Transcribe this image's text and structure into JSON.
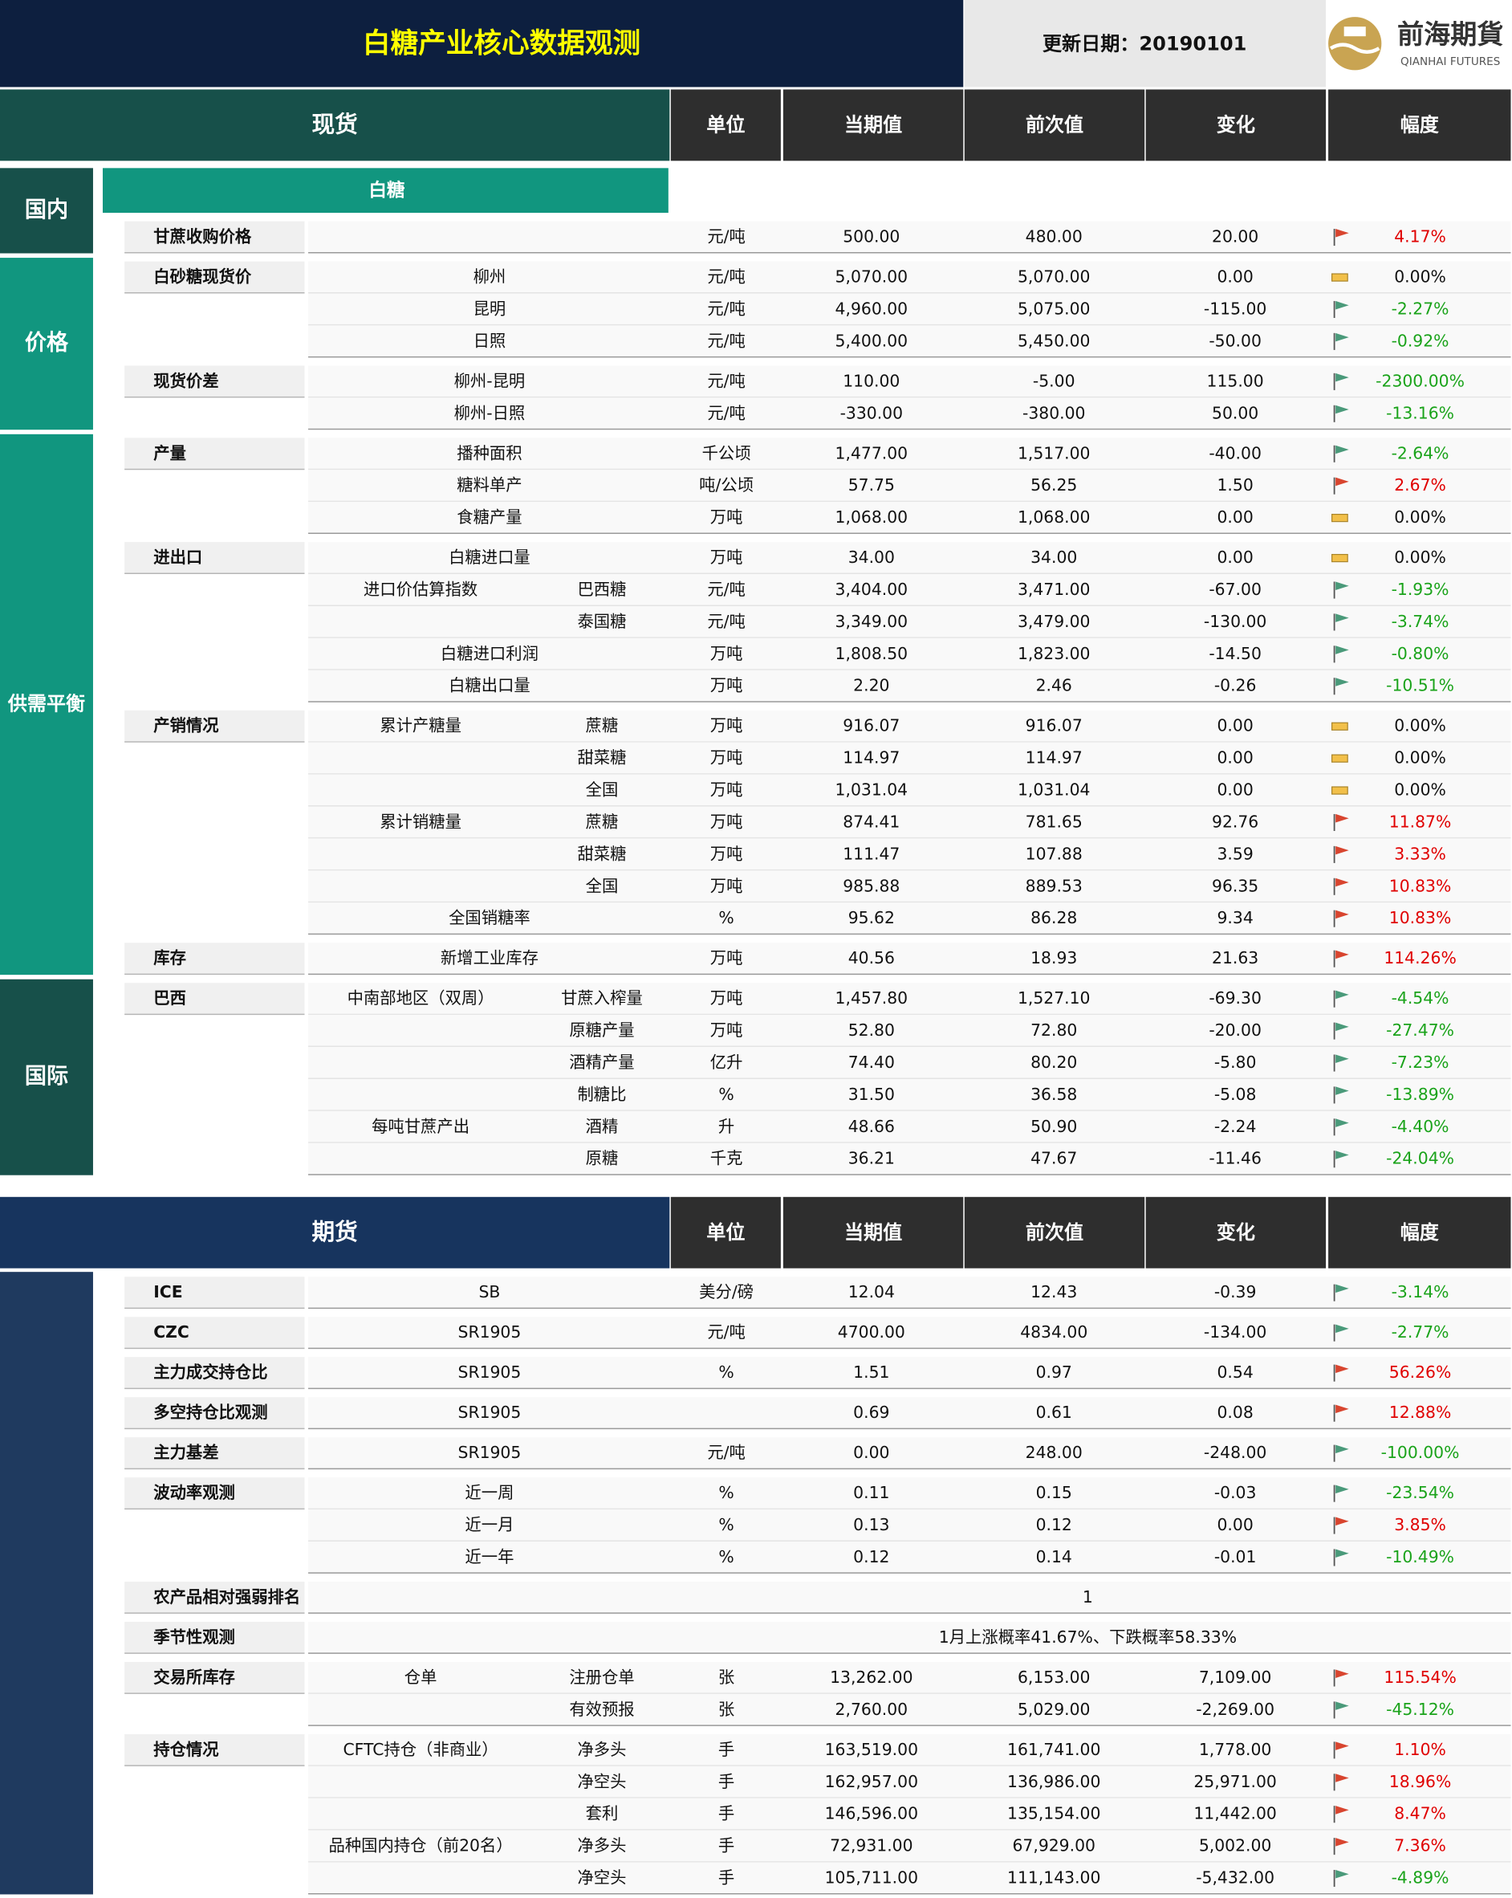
{
  "header": {
    "title": "白糖产业核心数据观测",
    "update": "更新日期：20190101",
    "logo_cn": "前海期貨",
    "logo_en": "QIANHAI FUTURES"
  },
  "columns": [
    "单位",
    "当期值",
    "前次值",
    "变化",
    "幅度"
  ],
  "spot": {
    "title": "现货",
    "subheader": "白糖",
    "color": "#17504a",
    "blocks": [
      {
        "label": "国内",
        "color": "#17504a",
        "groups": [
          {
            "label": "甘蔗收购价格",
            "rows": [
              {
                "unit": "元/吨",
                "cur": "500.00",
                "prev": "480.00",
                "chg": "20.00",
                "pct": "4.17%"
              }
            ]
          }
        ]
      },
      {
        "label": "价格",
        "color": "#11967f",
        "groups": [
          {
            "label": "白砂糖现货价",
            "rows": [
              {
                "name": "柳州",
                "unit": "元/吨",
                "cur": "5,070.00",
                "prev": "5,070.00",
                "chg": "0.00",
                "pct": "0.00%"
              },
              {
                "name": "昆明",
                "unit": "元/吨",
                "cur": "4,960.00",
                "prev": "5,075.00",
                "chg": "-115.00",
                "pct": "-2.27%"
              },
              {
                "name": "日照",
                "unit": "元/吨",
                "cur": "5,400.00",
                "prev": "5,450.00",
                "chg": "-50.00",
                "pct": "-0.92%"
              }
            ]
          },
          {
            "label": "现货价差",
            "rows": [
              {
                "name": "柳州-昆明",
                "unit": "元/吨",
                "cur": "110.00",
                "prev": "-5.00",
                "chg": "115.00",
                "pct": "-2300.00%"
              },
              {
                "name": "柳州-日照",
                "unit": "元/吨",
                "cur": "-330.00",
                "prev": "-380.00",
                "chg": "50.00",
                "pct": "-13.16%"
              }
            ]
          }
        ]
      },
      {
        "label": "供需平衡",
        "color": "#11967f",
        "groups": [
          {
            "label": "产量",
            "rows": [
              {
                "name": "播种面积",
                "unit": "千公顷",
                "cur": "1,477.00",
                "prev": "1,517.00",
                "chg": "-40.00",
                "pct": "-2.64%"
              },
              {
                "name": "糖料单产",
                "unit": "吨/公顷",
                "cur": "57.75",
                "prev": "56.25",
                "chg": "1.50",
                "pct": "2.67%"
              },
              {
                "name": "食糖产量",
                "unit": "万吨",
                "cur": "1,068.00",
                "prev": "1,068.00",
                "chg": "0.00",
                "pct": "0.00%"
              }
            ]
          },
          {
            "label": "进出口",
            "rows": [
              {
                "name": "白糖进口量",
                "unit": "万吨",
                "cur": "34.00",
                "prev": "34.00",
                "chg": "0.00",
                "pct": "0.00%"
              },
              {
                "name": "进口价估算指数",
                "sub": "巴西糖",
                "unit": "元/吨",
                "cur": "3,404.00",
                "prev": "3,471.00",
                "chg": "-67.00",
                "pct": "-1.93%"
              },
              {
                "sub": "泰国糖",
                "unit": "元/吨",
                "cur": "3,349.00",
                "prev": "3,479.00",
                "chg": "-130.00",
                "pct": "-3.74%"
              },
              {
                "name": "白糖进口利润",
                "unit": "万吨",
                "cur": "1,808.50",
                "prev": "1,823.00",
                "chg": "-14.50",
                "pct": "-0.80%"
              },
              {
                "name": "白糖出口量",
                "unit": "万吨",
                "cur": "2.20",
                "prev": "2.46",
                "chg": "-0.26",
                "pct": "-10.51%"
              }
            ]
          },
          {
            "label": "产销情况",
            "rows": [
              {
                "name": "累计产糖量",
                "sub": "蔗糖",
                "unit": "万吨",
                "cur": "916.07",
                "prev": "916.07",
                "chg": "0.00",
                "pct": "0.00%"
              },
              {
                "sub": "甜菜糖",
                "unit": "万吨",
                "cur": "114.97",
                "prev": "114.97",
                "chg": "0.00",
                "pct": "0.00%"
              },
              {
                "sub": "全国",
                "unit": "万吨",
                "cur": "1,031.04",
                "prev": "1,031.04",
                "chg": "0.00",
                "pct": "0.00%"
              },
              {
                "name": "累计销糖量",
                "sub": "蔗糖",
                "unit": "万吨",
                "cur": "874.41",
                "prev": "781.65",
                "chg": "92.76",
                "pct": "11.87%"
              },
              {
                "sub": "甜菜糖",
                "unit": "万吨",
                "cur": "111.47",
                "prev": "107.88",
                "chg": "3.59",
                "pct": "3.33%"
              },
              {
                "sub": "全国",
                "unit": "万吨",
                "cur": "985.88",
                "prev": "889.53",
                "chg": "96.35",
                "pct": "10.83%"
              },
              {
                "name": "全国销糖率",
                "unit": "%",
                "cur": "95.62",
                "prev": "86.28",
                "chg": "9.34",
                "pct": "10.83%"
              }
            ]
          },
          {
            "label": "库存",
            "rows": [
              {
                "name": "新增工业库存",
                "unit": "万吨",
                "cur": "40.56",
                "prev": "18.93",
                "chg": "21.63",
                "pct": "114.26%"
              }
            ]
          }
        ]
      },
      {
        "label": "国际",
        "color": "#17504a",
        "groups": [
          {
            "label": "巴西",
            "rows": [
              {
                "name": "中南部地区（双周）",
                "sub": "甘蔗入榨量",
                "unit": "万吨",
                "cur": "1,457.80",
                "prev": "1,527.10",
                "chg": "-69.30",
                "pct": "-4.54%"
              },
              {
                "sub": "原糖产量",
                "unit": "万吨",
                "cur": "52.80",
                "prev": "72.80",
                "chg": "-20.00",
                "pct": "-27.47%"
              },
              {
                "sub": "酒精产量",
                "unit": "亿升",
                "cur": "74.40",
                "prev": "80.20",
                "chg": "-5.80",
                "pct": "-7.23%"
              },
              {
                "sub": "制糖比",
                "unit": "%",
                "cur": "31.50",
                "prev": "36.58",
                "chg": "-5.08",
                "pct": "-13.89%"
              },
              {
                "name": "每吨甘蔗产出",
                "sub": "酒精",
                "unit": "升",
                "cur": "48.66",
                "prev": "50.90",
                "chg": "-2.24",
                "pct": "-4.40%"
              },
              {
                "sub": "原糖",
                "unit": "千克",
                "cur": "36.21",
                "prev": "47.67",
                "chg": "-11.46",
                "pct": "-24.04%"
              }
            ]
          }
        ]
      }
    ]
  },
  "futures": {
    "title": "期货",
    "color": "#17345e",
    "blocks": [
      {
        "color": "#1f3a5f",
        "groups": [
          {
            "label": "ICE",
            "rows": [
              {
                "name": "SB",
                "unit": "美分/磅",
                "cur": "12.04",
                "prev": "12.43",
                "chg": "-0.39",
                "pct": "-3.14%"
              }
            ]
          },
          {
            "label": "CZC",
            "rows": [
              {
                "name": "SR1905",
                "unit": "元/吨",
                "cur": "4700.00",
                "prev": "4834.00",
                "chg": "-134.00",
                "pct": "-2.77%"
              }
            ]
          },
          {
            "label": "主力成交持仓比",
            "rows": [
              {
                "name": "SR1905",
                "unit": "%",
                "cur": "1.51",
                "prev": "0.97",
                "chg": "0.54",
                "pct": "56.26%"
              }
            ]
          },
          {
            "label": "多空持仓比观测",
            "rows": [
              {
                "name": "SR1905",
                "cur": "0.69",
                "prev": "0.61",
                "chg": "0.08",
                "pct": "12.88%"
              }
            ]
          },
          {
            "label": "主力基差",
            "rows": [
              {
                "name": "SR1905",
                "unit": "元/吨",
                "cur": "0.00",
                "prev": "248.00",
                "chg": "-248.00",
                "pct": "-100.00%"
              }
            ]
          },
          {
            "label": "波动率观测",
            "rows": [
              {
                "name": "近一周",
                "unit": "%",
                "cur": "0.11",
                "prev": "0.15",
                "chg": "-0.03",
                "pct": "-23.54%"
              },
              {
                "name": "近一月",
                "unit": "%",
                "cur": "0.13",
                "prev": "0.12",
                "chg": "0.00",
                "pct": "3.85%"
              },
              {
                "name": "近一年",
                "unit": "%",
                "cur": "0.12",
                "prev": "0.14",
                "chg": "-0.01",
                "pct": "-10.49%"
              }
            ]
          },
          {
            "label": "农产品相对强弱排名",
            "rows": [
              {
                "span": "1"
              }
            ]
          },
          {
            "label": "季节性观测",
            "rows": [
              {
                "span": "1月上涨概率41.67%、下跌概率58.33%"
              }
            ]
          },
          {
            "label": "交易所库存",
            "rows": [
              {
                "name": "仓单",
                "sub": "注册仓单",
                "unit": "张",
                "cur": "13,262.00",
                "prev": "6,153.00",
                "chg": "7,109.00",
                "pct": "115.54%"
              },
              {
                "sub": "有效预报",
                "unit": "张",
                "cur": "2,760.00",
                "prev": "5,029.00",
                "chg": "-2,269.00",
                "pct": "-45.12%"
              }
            ]
          },
          {
            "label": "持仓情况",
            "rows": [
              {
                "name": "CFTC持仓（非商业）",
                "sub": "净多头",
                "unit": "手",
                "cur": "163,519.00",
                "prev": "161,741.00",
                "chg": "1,778.00",
                "pct": "1.10%"
              },
              {
                "sub": "净空头",
                "unit": "手",
                "cur": "162,957.00",
                "prev": "136,986.00",
                "chg": "25,971.00",
                "pct": "18.96%"
              },
              {
                "sub": "套利",
                "unit": "手",
                "cur": "146,596.00",
                "prev": "135,154.00",
                "chg": "11,442.00",
                "pct": "8.47%"
              },
              {
                "name": "品种国内持仓（前20名）",
                "sub": "净多头",
                "unit": "手",
                "cur": "72,931.00",
                "prev": "67,929.00",
                "chg": "5,002.00",
                "pct": "7.36%"
              },
              {
                "sub": "净空头",
                "unit": "手",
                "cur": "105,711.00",
                "prev": "111,143.00",
                "chg": "-5,432.00",
                "pct": "-4.89%"
              }
            ]
          }
        ]
      }
    ]
  }
}
